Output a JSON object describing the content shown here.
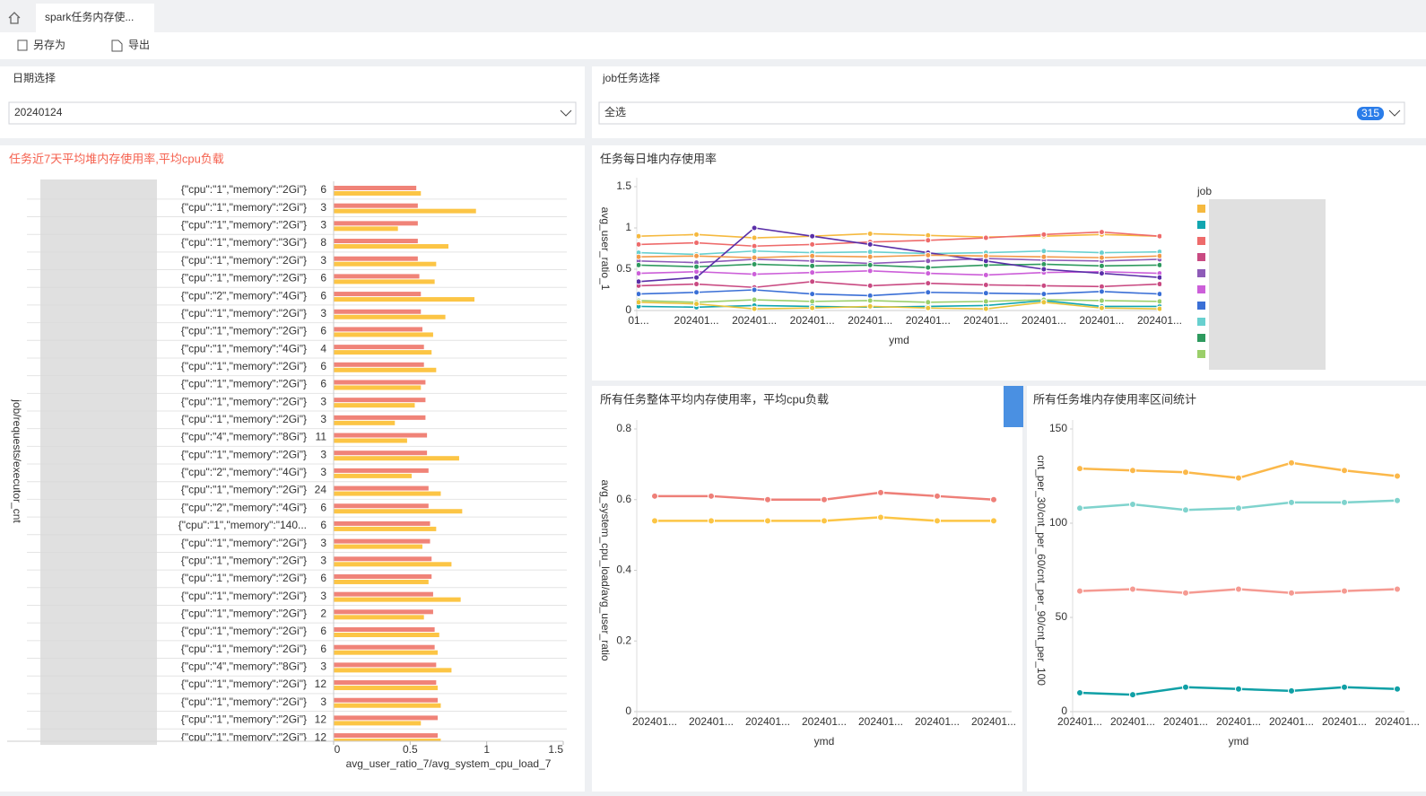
{
  "tabs": {
    "title": "spark任务内存使..."
  },
  "toolbar": {
    "save_as": "另存为",
    "export": "导出"
  },
  "filters": [
    {
      "label": "日期选择",
      "value": "20240124"
    },
    {
      "label": "job任务选择",
      "value": "全选",
      "count": 315
    }
  ],
  "chart_data": [
    {
      "type": "hbar",
      "title": "任务近7天平均堆内存使用率,平均cpu负载",
      "xlabel": "avg_user_ratio_7/avg_system_cpu_load_7",
      "ylabel": "job/requests/executor_cnt",
      "requests": [
        "{\"cpu\":\"1\",\"memory\":\"2Gi\"}",
        "{\"cpu\":\"1\",\"memory\":\"2Gi\"}",
        "{\"cpu\":\"1\",\"memory\":\"2Gi\"}",
        "{\"cpu\":\"1\",\"memory\":\"3Gi\"}",
        "{\"cpu\":\"1\",\"memory\":\"2Gi\"}",
        "{\"cpu\":\"1\",\"memory\":\"2Gi\"}",
        "{\"cpu\":\"2\",\"memory\":\"4Gi\"}",
        "{\"cpu\":\"1\",\"memory\":\"2Gi\"}",
        "{\"cpu\":\"1\",\"memory\":\"2Gi\"}",
        "{\"cpu\":\"1\",\"memory\":\"4Gi\"}",
        "{\"cpu\":\"1\",\"memory\":\"2Gi\"}",
        "{\"cpu\":\"1\",\"memory\":\"2Gi\"}",
        "{\"cpu\":\"1\",\"memory\":\"2Gi\"}",
        "{\"cpu\":\"1\",\"memory\":\"2Gi\"}",
        "{\"cpu\":\"4\",\"memory\":\"8Gi\"}",
        "{\"cpu\":\"1\",\"memory\":\"2Gi\"}",
        "{\"cpu\":\"2\",\"memory\":\"4Gi\"}",
        "{\"cpu\":\"1\",\"memory\":\"2Gi\"}",
        "{\"cpu\":\"2\",\"memory\":\"4Gi\"}",
        "{\"cpu\":\"1\",\"memory\":\"140...",
        "{\"cpu\":\"1\",\"memory\":\"2Gi\"}",
        "{\"cpu\":\"1\",\"memory\":\"2Gi\"}",
        "{\"cpu\":\"1\",\"memory\":\"2Gi\"}",
        "{\"cpu\":\"1\",\"memory\":\"2Gi\"}",
        "{\"cpu\":\"1\",\"memory\":\"2Gi\"}",
        "{\"cpu\":\"1\",\"memory\":\"2Gi\"}",
        "{\"cpu\":\"1\",\"memory\":\"2Gi\"}",
        "{\"cpu\":\"4\",\"memory\":\"8Gi\"}",
        "{\"cpu\":\"1\",\"memory\":\"2Gi\"}",
        "{\"cpu\":\"1\",\"memory\":\"2Gi\"}",
        "{\"cpu\":\"1\",\"memory\":\"2Gi\"}",
        "{\"cpu\":\"1\",\"memory\":\"2Gi\"}"
      ],
      "executor_cnt": [
        6,
        3,
        3,
        8,
        3,
        6,
        6,
        3,
        6,
        4,
        6,
        6,
        3,
        3,
        11,
        3,
        3,
        24,
        6,
        6,
        3,
        3,
        6,
        3,
        2,
        6,
        6,
        3,
        12,
        3,
        12,
        12
      ],
      "series": [
        {
          "color": "#f08378",
          "values": [
            0.54,
            0.55,
            0.55,
            0.55,
            0.55,
            0.56,
            0.57,
            0.57,
            0.58,
            0.59,
            0.59,
            0.6,
            0.6,
            0.6,
            0.61,
            0.61,
            0.62,
            0.62,
            0.62,
            0.63,
            0.63,
            0.64,
            0.64,
            0.65,
            0.65,
            0.66,
            0.66,
            0.67,
            0.67,
            0.68,
            0.68,
            0.68
          ]
        },
        {
          "color": "#fcc545",
          "values": [
            0.57,
            0.93,
            0.42,
            0.75,
            0.67,
            0.66,
            0.92,
            0.73,
            0.65,
            0.64,
            0.67,
            0.57,
            0.53,
            0.4,
            0.48,
            0.82,
            0.51,
            0.7,
            0.84,
            0.67,
            0.58,
            0.77,
            0.62,
            0.83,
            0.59,
            0.69,
            0.68,
            0.77,
            0.68,
            0.7,
            0.57,
            0.7
          ]
        }
      ],
      "xlim": [
        0,
        1.5
      ],
      "xticks": [
        0,
        0.5,
        1,
        1.5
      ]
    },
    {
      "type": "line",
      "title": "任务每日堆内存使用率",
      "xlabel": "ymd",
      "ylabel": "avg_user_ratio_1",
      "legend_title": "job",
      "categories": [
        "01...",
        "202401...",
        "202401...",
        "202401...",
        "202401...",
        "202401...",
        "202401...",
        "202401...",
        "202401...",
        "202401..."
      ],
      "ylim": [
        0,
        1.5
      ],
      "yticks": [
        0,
        0.5,
        1,
        1.5
      ],
      "series": [
        {
          "color": "#f5b93f",
          "values": [
            0.9,
            0.92,
            0.88,
            0.9,
            0.93,
            0.91,
            0.89,
            0.9,
            0.92,
            0.9
          ]
        },
        {
          "color": "#11a6b0",
          "values": [
            0.05,
            0.04,
            0.06,
            0.05,
            0.04,
            0.05,
            0.06,
            0.12,
            0.05,
            0.05
          ]
        },
        {
          "color": "#ee6b6b",
          "values": [
            0.8,
            0.82,
            0.78,
            0.8,
            0.83,
            0.85,
            0.88,
            0.92,
            0.95,
            0.9
          ]
        },
        {
          "color": "#c94a82",
          "values": [
            0.3,
            0.32,
            0.28,
            0.35,
            0.3,
            0.33,
            0.31,
            0.3,
            0.29,
            0.32
          ]
        },
        {
          "color": "#8e5bb8",
          "values": [
            0.6,
            0.58,
            0.62,
            0.6,
            0.57,
            0.6,
            0.63,
            0.61,
            0.6,
            0.62
          ]
        },
        {
          "color": "#cc5fd9",
          "values": [
            0.45,
            0.47,
            0.44,
            0.46,
            0.48,
            0.45,
            0.43,
            0.46,
            0.47,
            0.45
          ]
        },
        {
          "color": "#3a6fd6",
          "values": [
            0.2,
            0.22,
            0.25,
            0.2,
            0.18,
            0.22,
            0.21,
            0.2,
            0.23,
            0.2
          ]
        },
        {
          "color": "#68d0cf",
          "values": [
            0.7,
            0.68,
            0.72,
            0.7,
            0.71,
            0.69,
            0.7,
            0.72,
            0.7,
            0.71
          ]
        },
        {
          "color": "#2e9a5e",
          "values": [
            0.55,
            0.53,
            0.56,
            0.54,
            0.55,
            0.52,
            0.55,
            0.56,
            0.54,
            0.55
          ]
        },
        {
          "color": "#9bcf6a",
          "values": [
            0.12,
            0.1,
            0.13,
            0.11,
            0.12,
            0.1,
            0.11,
            0.13,
            0.12,
            0.11
          ]
        },
        {
          "color": "#5a2fa8",
          "values": [
            0.35,
            0.4,
            1,
            0.9,
            0.8,
            0.7,
            0.6,
            0.5,
            0.45,
            0.4
          ]
        },
        {
          "color": "#f29a4a",
          "values": [
            0.65,
            0.66,
            0.64,
            0.66,
            0.65,
            0.67,
            0.66,
            0.65,
            0.64,
            0.66
          ]
        },
        {
          "color": "#e8c43a",
          "values": [
            0.1,
            0.08,
            0.02,
            0.03,
            0.05,
            0.03,
            0.02,
            0.1,
            0.03,
            0.02
          ]
        }
      ]
    },
    {
      "type": "line",
      "title": "所有任务整体平均内存使用率，平均cpu负载",
      "xlabel": "ymd",
      "ylabel": "avg_system_cpu_load/avg_user_ratio",
      "categories": [
        "202401...",
        "202401...",
        "202401...",
        "202401...",
        "202401...",
        "202401...",
        "202401..."
      ],
      "ylim": [
        0,
        0.8
      ],
      "yticks": [
        0,
        0.2,
        0.4,
        0.6,
        0.8
      ],
      "series": [
        {
          "color": "#ee7f78",
          "values": [
            0.61,
            0.61,
            0.6,
            0.6,
            0.62,
            0.61,
            0.6
          ]
        },
        {
          "color": "#fcc545",
          "values": [
            0.54,
            0.54,
            0.54,
            0.54,
            0.55,
            0.54,
            0.54
          ]
        }
      ]
    },
    {
      "type": "line",
      "title": "所有任务堆内存使用率区间统计",
      "xlabel": "ymd",
      "ylabel": "cnt_per_30/cnt_per_60/cnt_per_90/cnt_per_100",
      "categories": [
        "202401...",
        "202401...",
        "202401...",
        "202401...",
        "202401...",
        "202401...",
        "202401..."
      ],
      "ylim": [
        0,
        150
      ],
      "yticks": [
        0,
        50,
        100,
        150
      ],
      "series": [
        {
          "color": "#fbb84a",
          "values": [
            129,
            128,
            127,
            124,
            132,
            128,
            125
          ]
        },
        {
          "color": "#7fd3cd",
          "values": [
            108,
            110,
            107,
            108,
            111,
            111,
            112
          ]
        },
        {
          "color": "#f59a92",
          "values": [
            64,
            65,
            63,
            65,
            63,
            64,
            65
          ]
        },
        {
          "color": "#10a0a6",
          "values": [
            10,
            9,
            13,
            12,
            11,
            13,
            12
          ]
        }
      ]
    }
  ]
}
